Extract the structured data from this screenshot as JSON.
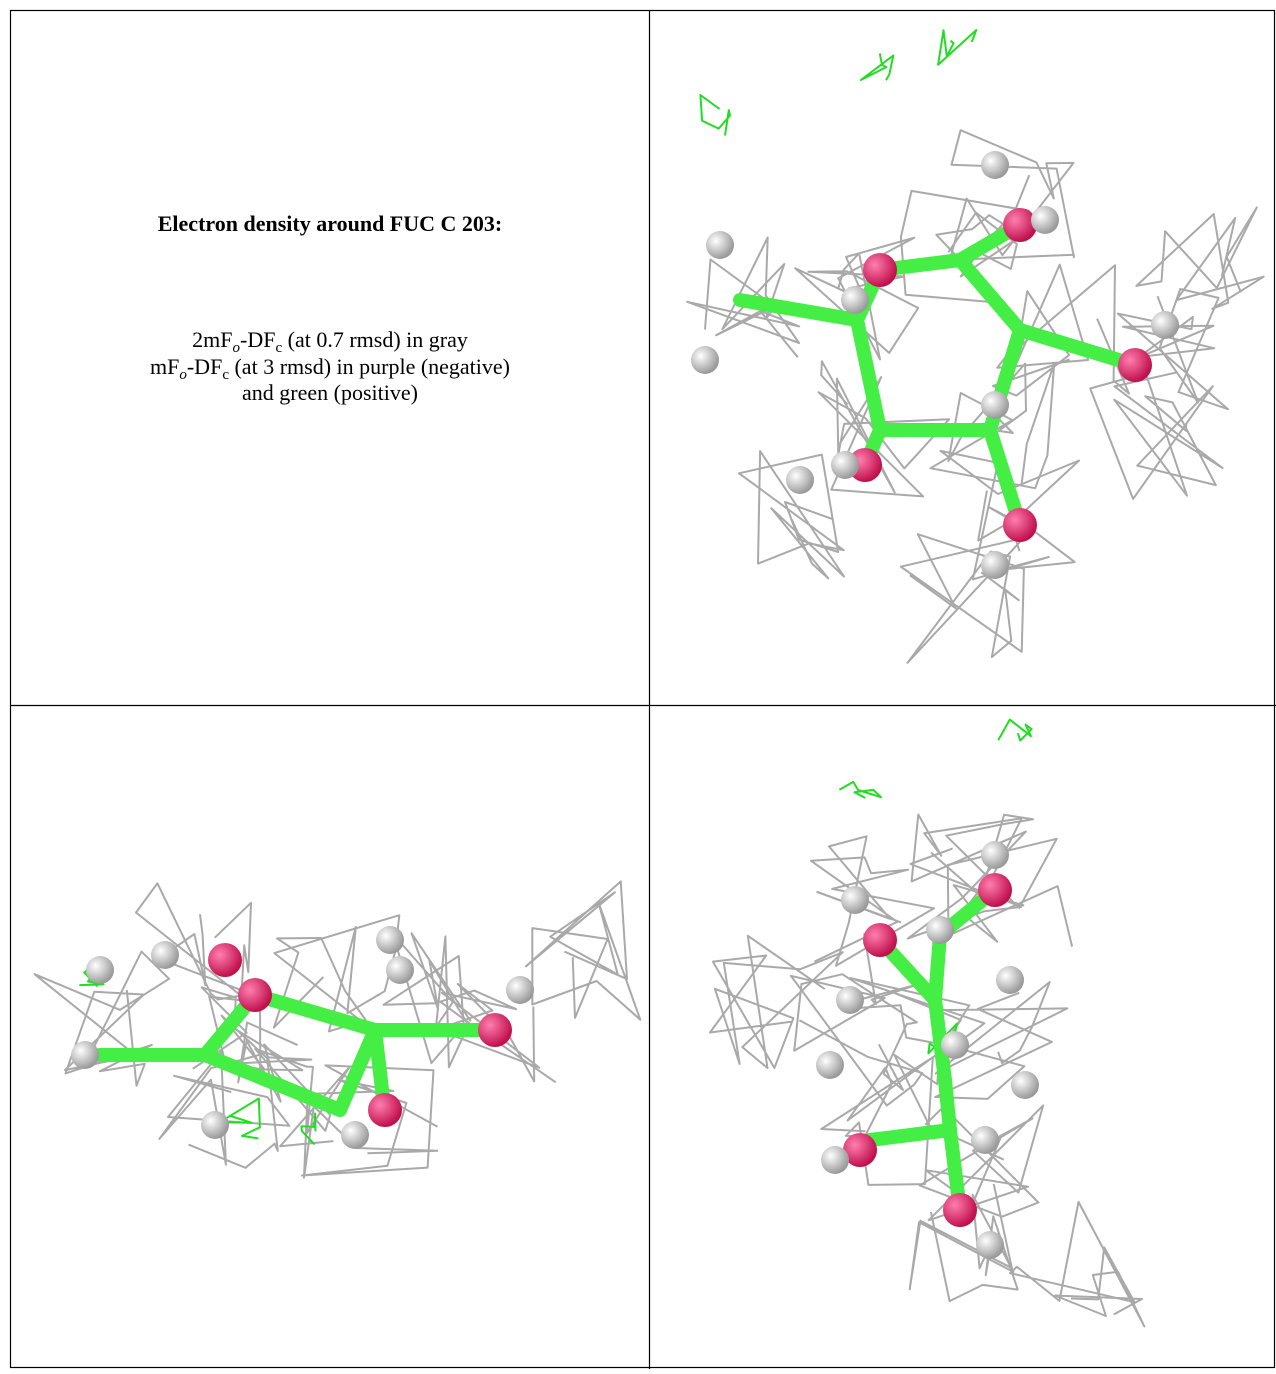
{
  "caption": {
    "title": "Electron density around FUC C 203:",
    "lines": [
      [
        "2mF",
        "o",
        "-DF",
        "c",
        " (at 0.7 rmsd) in gray"
      ],
      [
        "mF",
        "o",
        "-DF",
        "c",
        " (at 3 rmsd) in purple (negative)"
      ],
      [
        "and green (positive)"
      ]
    ]
  }
}
